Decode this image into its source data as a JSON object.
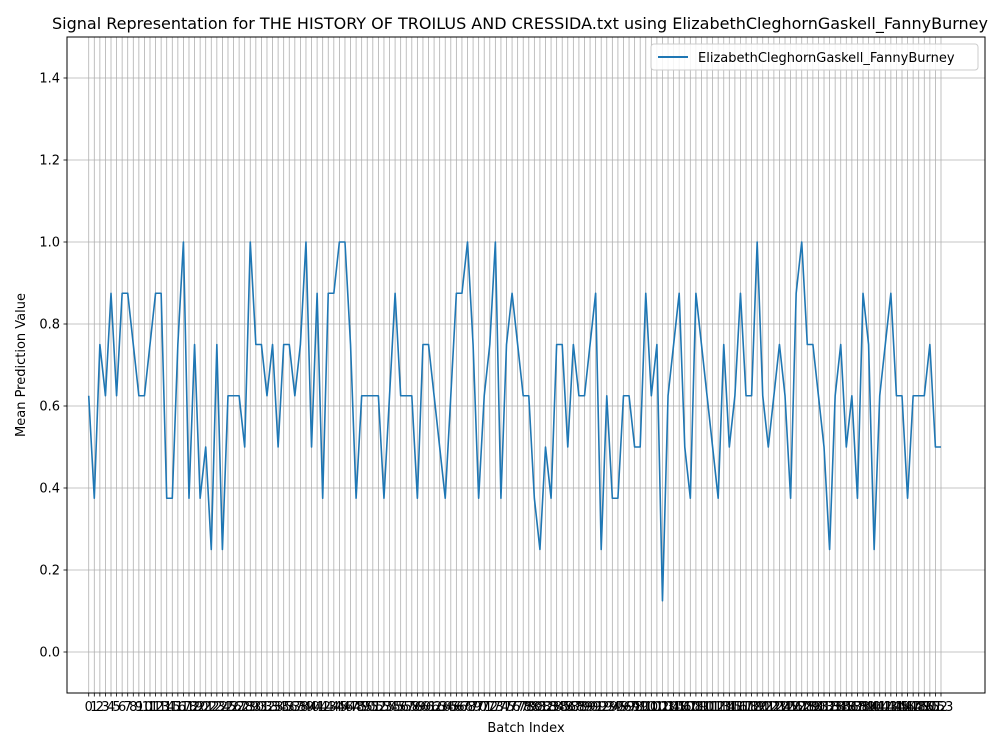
{
  "chart_data": {
    "type": "line",
    "title": "Signal Representation for THE HISTORY OF TROILUS AND CRESSIDA.txt using ElizabethCleghornGaskell_FannyBurney",
    "xlabel": "Batch Index",
    "ylabel": "Mean Prediction Value",
    "xlim": [
      -3.9,
      160.9
    ],
    "ylim": [
      -0.1,
      1.5
    ],
    "yticks": [
      0.0,
      0.2,
      0.4,
      0.6,
      0.8,
      1.0,
      1.2,
      1.4
    ],
    "grid": true,
    "legend_position": "top-right",
    "series": [
      {
        "name": "ElizabethCleghornGaskell_FannyBurney",
        "color": "#1f77b4",
        "values": [
          0.625,
          0.375,
          0.75,
          0.625,
          0.875,
          0.625,
          0.875,
          0.875,
          0.75,
          0.625,
          0.625,
          0.75,
          0.875,
          0.875,
          0.375,
          0.375,
          0.75,
          1.0,
          0.375,
          0.75,
          0.375,
          0.5,
          0.25,
          0.75,
          0.25,
          0.625,
          0.625,
          0.625,
          0.5,
          1.0,
          0.75,
          0.75,
          0.625,
          0.75,
          0.5,
          0.75,
          0.75,
          0.625,
          0.75,
          1.0,
          0.5,
          0.875,
          0.375,
          0.875,
          0.875,
          1.0,
          1.0,
          0.75,
          0.375,
          0.625,
          0.625,
          0.625,
          0.625,
          0.375,
          0.625,
          0.875,
          0.625,
          0.625,
          0.625,
          0.375,
          0.75,
          0.75,
          0.625,
          0.5,
          0.375,
          0.625,
          0.875,
          0.875,
          1.0,
          0.75,
          0.375,
          0.625,
          0.75,
          1.0,
          0.375,
          0.75,
          0.875,
          0.75,
          0.625,
          0.625,
          0.375,
          0.25,
          0.5,
          0.375,
          0.75,
          0.75,
          0.5,
          0.75,
          0.625,
          0.625,
          0.75,
          0.875,
          0.25,
          0.625,
          0.375,
          0.375,
          0.625,
          0.625,
          0.5,
          0.5,
          0.875,
          0.625,
          0.75,
          0.125,
          0.625,
          0.75,
          0.875,
          0.5,
          0.375,
          0.875,
          0.75,
          0.625,
          0.5,
          0.375,
          0.75,
          0.5,
          0.625,
          0.875,
          0.625,
          0.625,
          1.0,
          0.625,
          0.5,
          0.625,
          0.75,
          0.625,
          0.375,
          0.875,
          1.0,
          0.75,
          0.75,
          0.625,
          0.5,
          0.25,
          0.625,
          0.75,
          0.5,
          0.625,
          0.375,
          0.875,
          0.75,
          0.25,
          0.625,
          0.75,
          0.875,
          0.625,
          0.625,
          0.375,
          0.625,
          0.625,
          0.625,
          0.75,
          0.5,
          0.5
        ]
      }
    ]
  }
}
